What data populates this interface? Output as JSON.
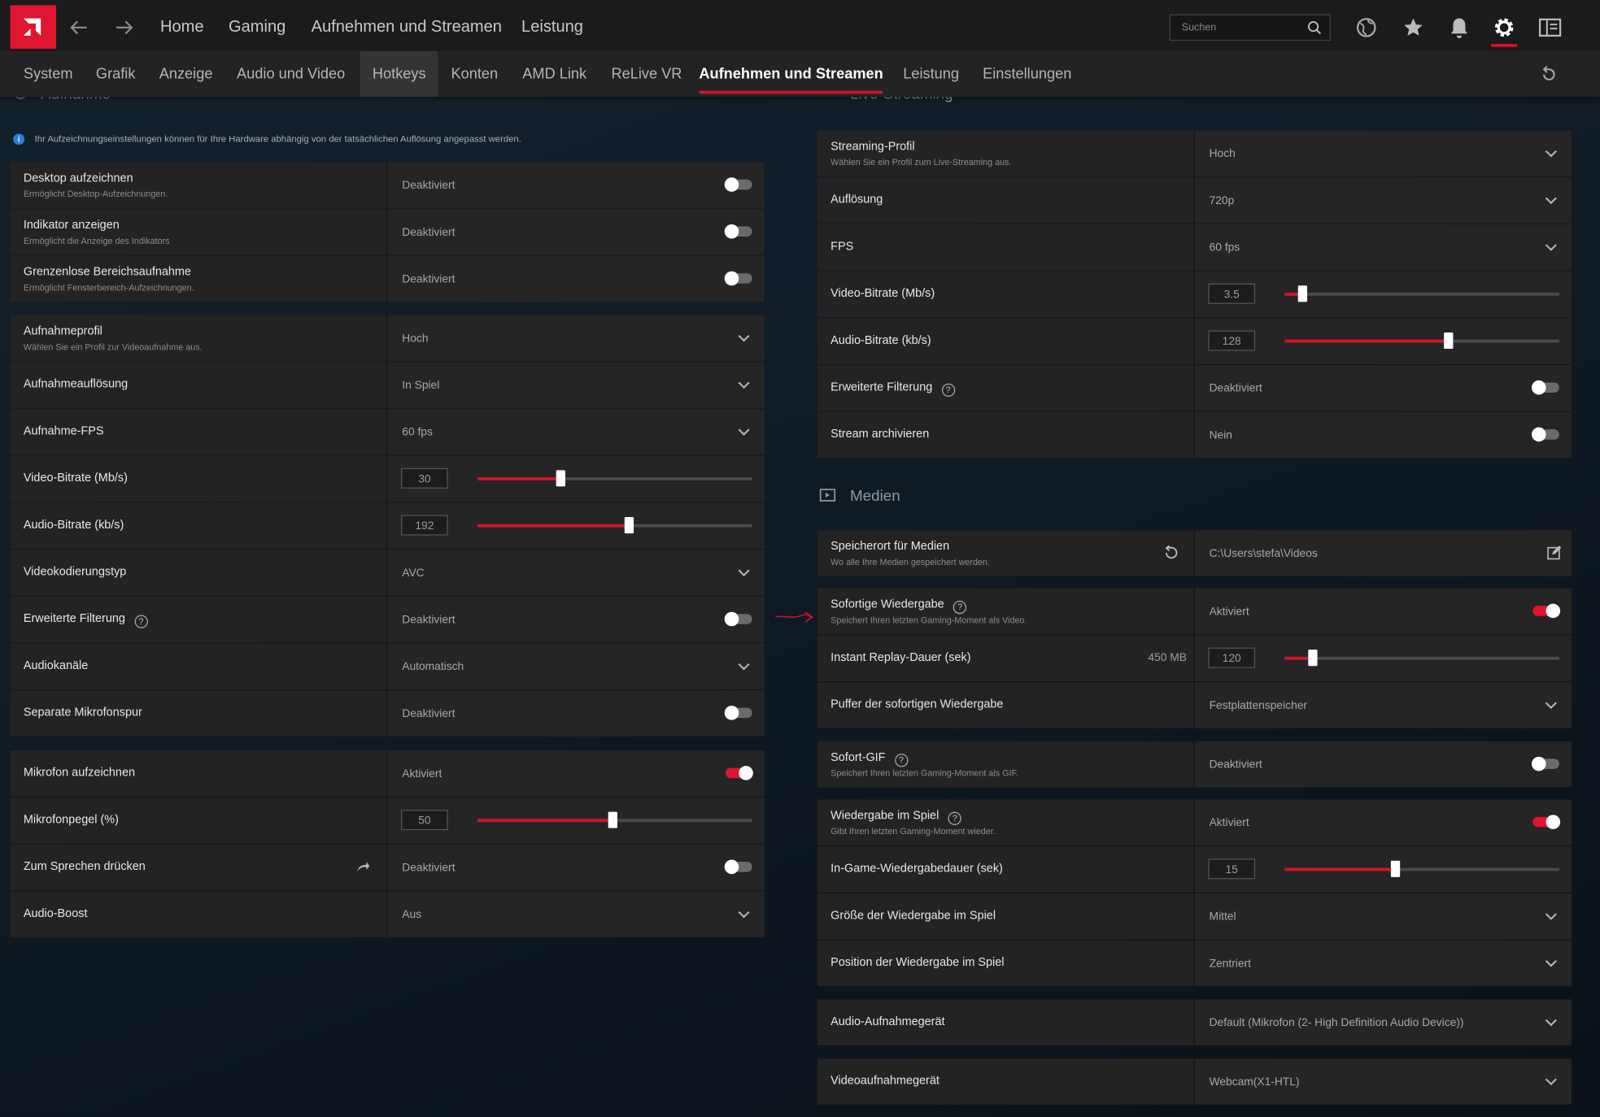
{
  "top_nav": {
    "items": [
      "Home",
      "Gaming",
      "Aufnehmen und Streamen",
      "Leistung"
    ],
    "search_placeholder": "Suchen"
  },
  "tabs": {
    "items": [
      "System",
      "Grafik",
      "Anzeige",
      "Audio und Video",
      "Hotkeys",
      "Konten",
      "AMD Link",
      "ReLive VR",
      "Aufnehmen und Streamen",
      "Leistung",
      "Einstellungen"
    ],
    "active": 8,
    "hover": 4
  },
  "left": {
    "section_title": "Aufnahme",
    "info": "Ihr Aufzeichnungseinstellungen können für Ihre Hardware abhängig von der tatsächlichen Auflösung angepasst werden.",
    "groups": [
      {
        "rows": [
          {
            "label": "Desktop aufzeichnen",
            "description": "Ermöglicht Desktop-Aufzeichnungen.",
            "value": "Deaktiviert",
            "control": "toggle",
            "on": false
          },
          {
            "label": "Indikator anzeigen",
            "description": "Ermöglicht die Anzeige des Indikators",
            "value": "Deaktiviert",
            "control": "toggle",
            "on": false
          },
          {
            "label": "Grenzenlose Bereichsaufnahme",
            "description": "Ermöglicht Fensterbereich-Aufzeichnungen.",
            "value": "Deaktiviert",
            "control": "toggle",
            "on": false
          }
        ]
      },
      {
        "rows": [
          {
            "label": "Aufnahmeprofil",
            "description": "Wählen Sie ein Profil zur Videoaufnahme aus.",
            "value": "Hoch",
            "control": "dropdown"
          },
          {
            "label": "Aufnahmeauflösung",
            "value": "In Spiel",
            "control": "dropdown"
          },
          {
            "label": "Aufnahme-FPS",
            "value": "60 fps",
            "control": "dropdown"
          },
          {
            "label": "Video-Bitrate (Mb/s)",
            "value": "30",
            "control": "slider"
          },
          {
            "label": "Audio-Bitrate (kb/s)",
            "value": "192",
            "control": "slider"
          },
          {
            "label": "Videokodierungstyp",
            "value": "AVC",
            "control": "dropdown"
          },
          {
            "label": "Erweiterte Filterung",
            "help": true,
            "value": "Deaktiviert",
            "control": "toggle",
            "on": false
          },
          {
            "label": "Audiokanäle",
            "value": "Automatisch",
            "control": "dropdown"
          },
          {
            "label": "Separate Mikrofonspur",
            "value": "Deaktiviert",
            "control": "toggle",
            "on": false
          }
        ]
      },
      {
        "rows": [
          {
            "label": "Mikrofon aufzeichnen",
            "value": "Aktiviert",
            "control": "toggle",
            "on": true
          },
          {
            "label": "Mikrofonpegel (%)",
            "value": "50",
            "control": "slider"
          },
          {
            "label": "Zum Sprechen drücken",
            "share": true,
            "value": "Deaktiviert",
            "control": "toggle",
            "on": false
          },
          {
            "label": "Audio-Boost",
            "value": "Aus",
            "control": "dropdown"
          }
        ]
      }
    ]
  },
  "right": {
    "section_title": "Live-Streaming",
    "media_title": "Medien",
    "groups": [
      {
        "rows": [
          {
            "label": "Streaming-Profil",
            "description": "Wählen Sie ein Profil zum Live-Streaming aus.",
            "value": "Hoch",
            "control": "dropdown"
          },
          {
            "label": "Auflösung",
            "value": "720p",
            "control": "dropdown"
          },
          {
            "label": "FPS",
            "value": "60 fps",
            "control": "dropdown"
          },
          {
            "label": "Video-Bitrate (Mb/s)",
            "value": "3.5",
            "control": "slider"
          },
          {
            "label": "Audio-Bitrate (kb/s)",
            "value": "128",
            "control": "slider"
          },
          {
            "label": "Erweiterte Filterung",
            "help": true,
            "value": "Deaktiviert",
            "control": "toggle",
            "on": false
          },
          {
            "label": "Stream archivieren",
            "value": "Nein",
            "control": "toggle",
            "on": false
          }
        ]
      },
      {
        "rows": [
          {
            "label": "Speicherort für Medien",
            "description": "Wo alle Ihre Medien gespeichert werden.",
            "value": "C:\\Users\\stefa\\Videos",
            "control": "path"
          }
        ]
      },
      {
        "rows": [
          {
            "label": "Sofortige Wiedergabe",
            "help": true,
            "description": "Speichert Ihren letzten Gaming-Moment als Video.",
            "value": "Aktiviert",
            "control": "toggle",
            "on": true
          },
          {
            "label": "Instant Replay-Dauer (sek)",
            "extra": "450 MB",
            "value": "120",
            "control": "slider"
          },
          {
            "label": "Puffer der sofortigen Wiedergabe",
            "value": "Festplattenspeicher",
            "control": "dropdown"
          }
        ]
      },
      {
        "rows": [
          {
            "label": "Sofort-GIF",
            "help": true,
            "description": "Speichert Ihren letzten Gaming-Moment als GIF.",
            "value": "Deaktiviert",
            "control": "toggle",
            "on": false
          }
        ]
      },
      {
        "rows": [
          {
            "label": "Wiedergabe im Spiel",
            "help": true,
            "description": "Gibt Ihren letzten Gaming-Moment wieder.",
            "value": "Aktiviert",
            "control": "toggle",
            "on": true
          },
          {
            "label": "In-Game-Wiedergabedauer (sek)",
            "value": "15",
            "control": "slider"
          },
          {
            "label": "Größe der Wiedergabe im Spiel",
            "value": "Mittel",
            "control": "dropdown"
          },
          {
            "label": "Position der Wiedergabe im Spiel",
            "value": "Zentriert",
            "control": "dropdown"
          }
        ]
      },
      {
        "rows": [
          {
            "label": "Audio-Aufnahmegerät",
            "value": "Default (Mikrofon (2- High Definition Audio Device))",
            "control": "dropdown"
          }
        ]
      },
      {
        "rows": [
          {
            "label": "Videoaufnahmegerät",
            "value": "Webcam(X1-HTL)",
            "control": "dropdown"
          }
        ]
      }
    ]
  }
}
